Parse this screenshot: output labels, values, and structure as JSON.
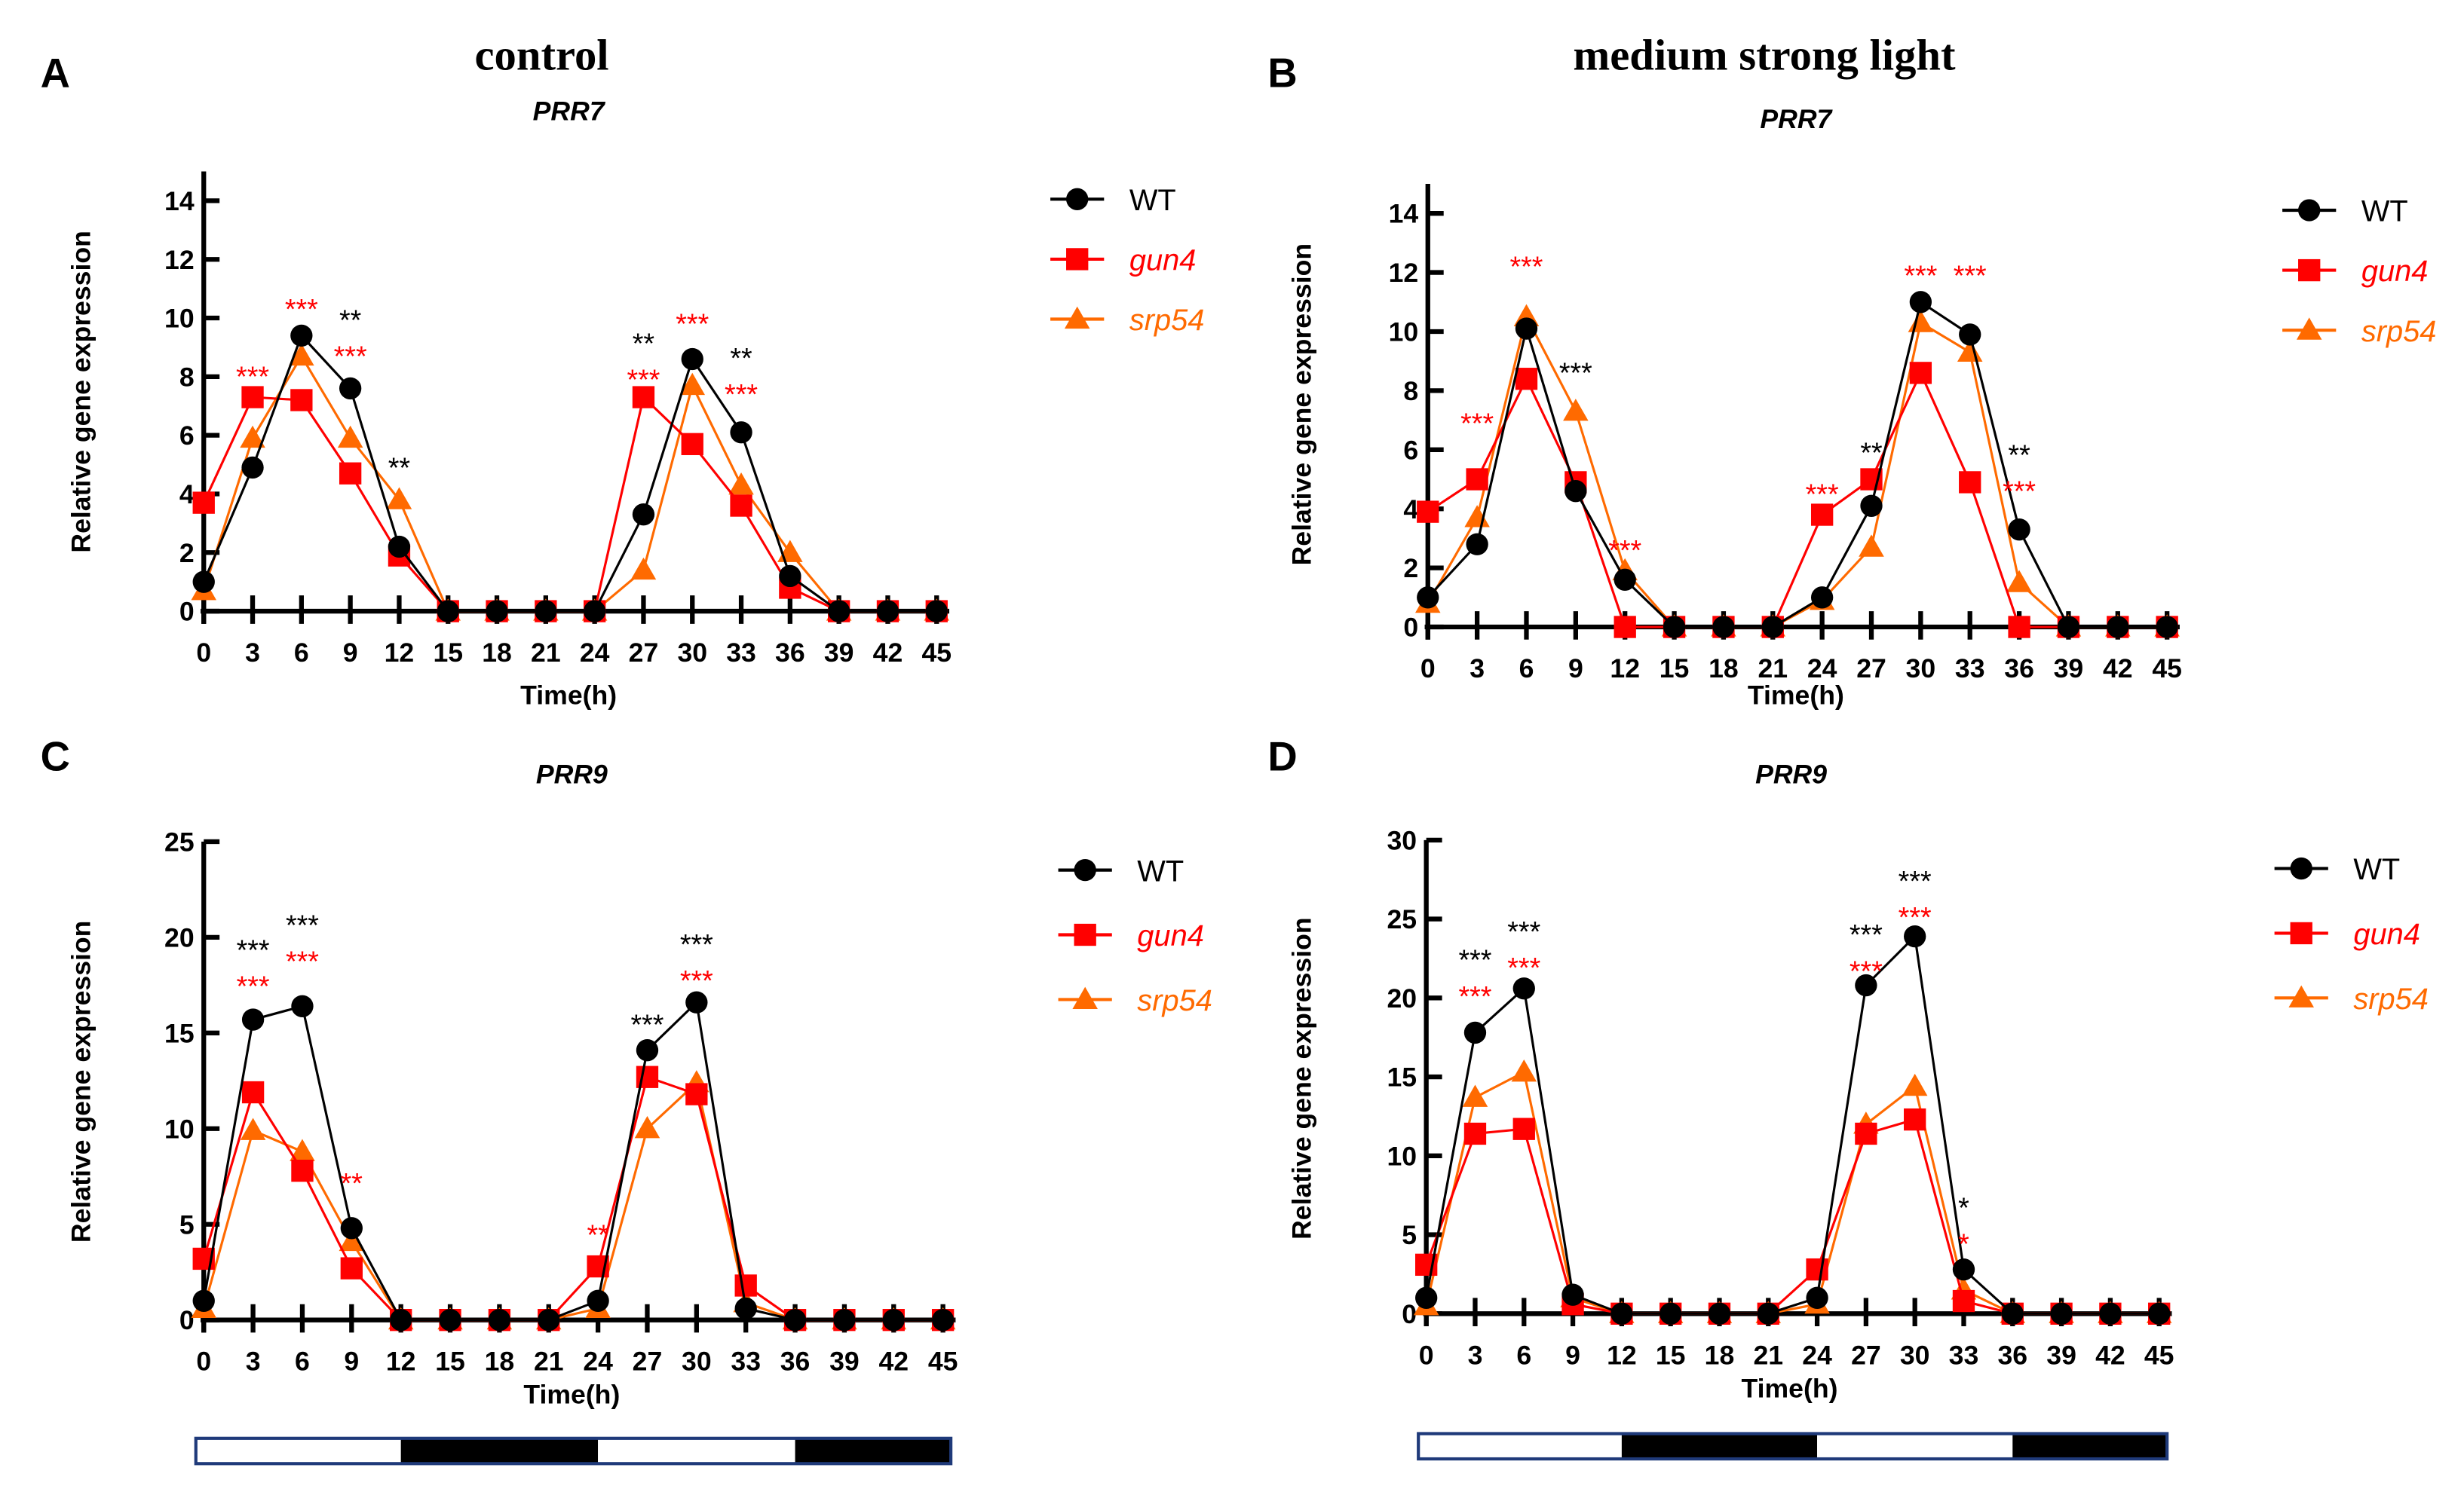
{
  "figure": {
    "col_titles": [
      "control",
      "medium strong light"
    ],
    "legend": [
      {
        "name": "WT",
        "color": "#000000",
        "marker": "circle"
      },
      {
        "name": "gun4",
        "color": "#ff0000",
        "marker": "square"
      },
      {
        "name": "srp54",
        "color": "#ff6a00",
        "marker": "triangle"
      }
    ],
    "photoperiod": [
      {
        "start": 0,
        "end": 12,
        "state": "light"
      },
      {
        "start": 12,
        "end": 24,
        "state": "dark"
      },
      {
        "start": 24,
        "end": 36,
        "state": "light"
      },
      {
        "start": 36,
        "end": 45,
        "state": "dark"
      }
    ],
    "photoperiod_colors": {
      "light": "#ffffff",
      "dark": "#000000",
      "border": "#1f3a7a"
    }
  },
  "chart_data": [
    {
      "type": "line",
      "panel": "A",
      "title": "PRR7",
      "xlabel": "Time(h)",
      "ylabel": "Relative gene expression",
      "x": [
        0,
        3,
        6,
        9,
        12,
        15,
        18,
        21,
        24,
        27,
        30,
        33,
        36,
        39,
        42,
        45
      ],
      "ylim": [
        0,
        15
      ],
      "yticks": [
        0,
        2,
        4,
        6,
        8,
        10,
        12,
        14
      ],
      "series": [
        {
          "name": "WT",
          "values": [
            1.0,
            4.9,
            9.4,
            7.6,
            2.2,
            0,
            0,
            0,
            0,
            3.3,
            8.6,
            6.1,
            1.2,
            0,
            0,
            0
          ]
        },
        {
          "name": "gun4",
          "values": [
            3.7,
            7.3,
            7.2,
            4.7,
            1.9,
            0,
            0,
            0,
            0,
            7.3,
            5.7,
            3.6,
            0.8,
            0,
            0,
            0
          ]
        },
        {
          "name": "srp54",
          "values": [
            0.7,
            5.9,
            8.7,
            5.9,
            3.8,
            0,
            0,
            0,
            0,
            1.4,
            7.7,
            4.3,
            2.0,
            0,
            0,
            0
          ]
        }
      ],
      "annotations": [
        {
          "x": 3,
          "y": 8.1,
          "text": "***",
          "color": "#ff0000"
        },
        {
          "x": 6,
          "y": 10.4,
          "text": "***",
          "color": "#ff0000"
        },
        {
          "x": 9,
          "y": 9.7,
          "text": "**",
          "color": "#000000"
        },
        {
          "x": 9,
          "y": 8.8,
          "text": "***",
          "color": "#ff0000"
        },
        {
          "x": 12,
          "y": 5.0,
          "text": "**",
          "color": "#000000"
        },
        {
          "x": 27,
          "y": 8.8,
          "text": "**",
          "color": "#000000"
        },
        {
          "x": 27,
          "y": 8.0,
          "text": "***",
          "color": "#ff0000"
        },
        {
          "x": 30,
          "y": 9.9,
          "text": "***",
          "color": "#ff0000"
        },
        {
          "x": 33,
          "y": 8.3,
          "text": "**",
          "color": "#000000"
        },
        {
          "x": 33,
          "y": 7.5,
          "text": "***",
          "color": "#ff0000"
        }
      ]
    },
    {
      "type": "line",
      "panel": "B",
      "title": "PRR7",
      "xlabel": "Time(h)",
      "ylabel": "Relative gene expression",
      "x": [
        0,
        3,
        6,
        9,
        12,
        15,
        18,
        21,
        24,
        27,
        30,
        33,
        36,
        39,
        42,
        45
      ],
      "ylim": [
        0,
        15
      ],
      "yticks": [
        0,
        2,
        4,
        6,
        8,
        10,
        12,
        14
      ],
      "series": [
        {
          "name": "WT",
          "values": [
            1.0,
            2.8,
            10.1,
            4.6,
            1.6,
            0,
            0,
            0,
            1.0,
            4.1,
            11.0,
            9.9,
            3.3,
            0,
            0,
            0
          ]
        },
        {
          "name": "gun4",
          "values": [
            3.9,
            5.0,
            8.4,
            4.9,
            0,
            0,
            0,
            0,
            3.8,
            5.0,
            8.6,
            4.9,
            0,
            0,
            0,
            0
          ]
        },
        {
          "name": "srp54",
          "values": [
            0.8,
            3.7,
            10.5,
            7.3,
            1.9,
            0,
            0,
            0,
            0.9,
            2.7,
            10.3,
            9.3,
            1.5,
            0,
            0,
            0
          ]
        }
      ],
      "annotations": [
        {
          "x": 3,
          "y": 7.0,
          "text": "***",
          "color": "#ff0000"
        },
        {
          "x": 6,
          "y": 12.3,
          "text": "***",
          "color": "#ff0000"
        },
        {
          "x": 9,
          "y": 8.7,
          "text": "***",
          "color": "#000000"
        },
        {
          "x": 12,
          "y": 2.7,
          "text": "***",
          "color": "#ff0000"
        },
        {
          "x": 24,
          "y": 4.6,
          "text": "***",
          "color": "#ff0000"
        },
        {
          "x": 27,
          "y": 6.0,
          "text": "**",
          "color": "#000000"
        },
        {
          "x": 30,
          "y": 12.0,
          "text": "***",
          "color": "#ff0000"
        },
        {
          "x": 33,
          "y": 12.0,
          "text": "***",
          "color": "#ff0000"
        },
        {
          "x": 36,
          "y": 5.6,
          "text": "**",
          "color": "#000000"
        },
        {
          "x": 36,
          "y": 4.7,
          "text": "***",
          "color": "#ff0000"
        }
      ]
    },
    {
      "type": "line",
      "panel": "C",
      "title": "PRR9",
      "xlabel": "Time(h)",
      "ylabel": "Relative gene expression",
      "x": [
        0,
        3,
        6,
        9,
        12,
        15,
        18,
        21,
        24,
        27,
        30,
        33,
        36,
        39,
        42,
        45
      ],
      "ylim": [
        0,
        25
      ],
      "yticks": [
        0,
        5,
        10,
        15,
        20,
        25
      ],
      "series": [
        {
          "name": "WT",
          "values": [
            1.0,
            15.7,
            16.4,
            4.8,
            0,
            0,
            0,
            0,
            1.0,
            14.1,
            16.6,
            0.6,
            0,
            0,
            0,
            0
          ]
        },
        {
          "name": "gun4",
          "values": [
            3.2,
            11.9,
            7.8,
            2.7,
            0,
            0,
            0,
            0,
            2.8,
            12.7,
            11.8,
            1.8,
            0,
            0,
            0,
            0
          ]
        },
        {
          "name": "srp54",
          "values": [
            0.6,
            9.9,
            8.8,
            4.1,
            0,
            0,
            0,
            0,
            0.6,
            10.0,
            12.4,
            0.9,
            0,
            0,
            0,
            0
          ]
        }
      ],
      "annotations": [
        {
          "x": 3,
          "y": 18.9,
          "text": "***",
          "color": "#000000"
        },
        {
          "x": 3,
          "y": 17.6,
          "text": "***",
          "color": "#ff0000"
        },
        {
          "x": 6,
          "y": 20.0,
          "text": "***",
          "color": "#000000"
        },
        {
          "x": 6,
          "y": 18.9,
          "text": "***",
          "color": "#ff0000"
        },
        {
          "x": 9,
          "y": 7.3,
          "text": "**",
          "color": "#ff0000"
        },
        {
          "x": 24,
          "y": 4.6,
          "text": "**",
          "color": "#ff0000"
        },
        {
          "x": 27,
          "y": 15.6,
          "text": "***",
          "color": "#000000"
        },
        {
          "x": 30,
          "y": 19.1,
          "text": "***",
          "color": "#000000"
        },
        {
          "x": 30,
          "y": 17.9,
          "text": "***",
          "color": "#ff0000"
        }
      ]
    },
    {
      "type": "line",
      "panel": "D",
      "title": "PRR9",
      "xlabel": "Time(h)",
      "ylabel": "Relative gene expression",
      "x": [
        0,
        3,
        6,
        9,
        12,
        15,
        18,
        21,
        24,
        27,
        30,
        33,
        36,
        39,
        42,
        45
      ],
      "ylim": [
        0,
        30
      ],
      "yticks": [
        0,
        5,
        10,
        15,
        20,
        25,
        30
      ],
      "series": [
        {
          "name": "WT",
          "values": [
            1.0,
            17.8,
            20.6,
            1.2,
            0,
            0,
            0,
            0,
            1.0,
            20.8,
            23.9,
            2.8,
            0,
            0,
            0,
            0
          ]
        },
        {
          "name": "gun4",
          "values": [
            3.1,
            11.4,
            11.7,
            0.6,
            0,
            0,
            0,
            0,
            2.8,
            11.4,
            12.3,
            0.8,
            0,
            0,
            0,
            0
          ]
        },
        {
          "name": "srp54",
          "values": [
            0.5,
            13.7,
            15.3,
            1.0,
            0,
            0,
            0,
            0,
            0.6,
            12.0,
            14.4,
            1.5,
            0,
            0,
            0,
            0
          ]
        }
      ],
      "annotations": [
        {
          "x": 3,
          "y": 21.6,
          "text": "***",
          "color": "#000000"
        },
        {
          "x": 3,
          "y": 20.3,
          "text": "***",
          "color": "#ff0000"
        },
        {
          "x": 6,
          "y": 23.4,
          "text": "***",
          "color": "#000000"
        },
        {
          "x": 6,
          "y": 22.1,
          "text": "***",
          "color": "#ff0000"
        },
        {
          "x": 27,
          "y": 23.4,
          "text": "***",
          "color": "#000000"
        },
        {
          "x": 27,
          "y": 21.9,
          "text": "***",
          "color": "#ff0000"
        },
        {
          "x": 30,
          "y": 26.5,
          "text": "***",
          "color": "#000000"
        },
        {
          "x": 30,
          "y": 25.3,
          "text": "***",
          "color": "#ff0000"
        },
        {
          "x": 33,
          "y": 6.3,
          "text": "*",
          "color": "#000000"
        },
        {
          "x": 33,
          "y": 4.6,
          "text": "*",
          "color": "#ff0000"
        }
      ]
    }
  ]
}
